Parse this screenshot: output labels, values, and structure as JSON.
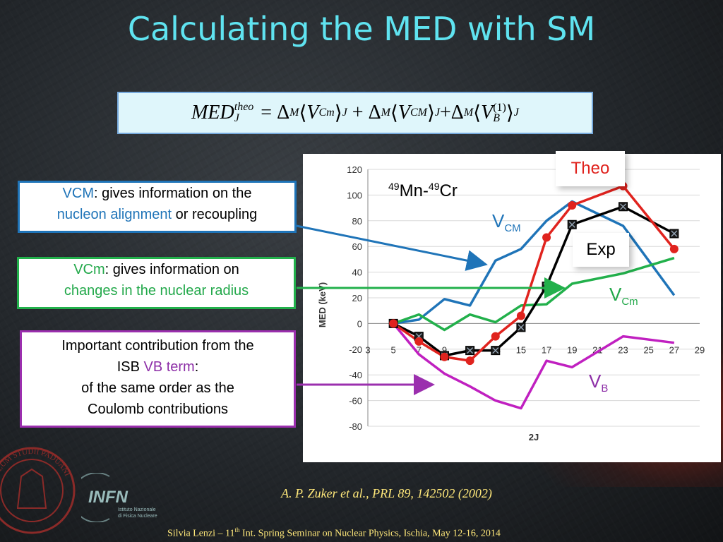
{
  "slide": {
    "title": "Calculating the MED with SM",
    "formula": {
      "lhs": "MED",
      "lhs_sup": "theo",
      "lhs_sub": "J",
      "terms": [
        "Δ",
        "M",
        "V",
        "Cm",
        "J",
        "Δ",
        "M",
        "V",
        "CM",
        "J",
        "Δ",
        "M",
        "V",
        "B",
        "(1)",
        "J"
      ]
    },
    "box_vcm": {
      "term": "VCM",
      "text1": ":  gives information on the",
      "hl": "nucleon alignment",
      "text2": " or recoupling"
    },
    "box_vcm_small": {
      "term": "VCm",
      "text1": ": gives information on",
      "hl": "changes in the nuclear radius"
    },
    "box_vb": {
      "line1": "Important contribution from the",
      "isb": "ISB ",
      "term": "VB term",
      "colon": ":",
      "line3": "of the same order as the",
      "line4": "Coulomb contributions"
    },
    "label_theo": "Theo",
    "label_exp": "Exp",
    "series_labels": {
      "vcm_main": "V",
      "vcm_sub": "CM",
      "vcmm_main": "V",
      "vcmm_sub": "Cm",
      "vb_main": "V",
      "vb_sub": "B"
    },
    "nucleus": {
      "a1": "49",
      "e1": "Mn-",
      "a2": "49",
      "e2": "Cr"
    },
    "reference": "A. P. Zuker et al., PRL 89, 142502 (2002)",
    "footer": {
      "pre": "Silvia Lenzi –  11",
      "sup": "th",
      "post": "  Int. Spring Seminar on Nuclear Physics, Ischia, May 12-16, 2014"
    },
    "logo": {
      "name": "INFN",
      "line1": "Istituto Nazionale",
      "line2": "di Fisica Nucleare"
    },
    "seal_text": "SIGILLUM STUDII PADUANI"
  },
  "colors": {
    "title": "#5fe3f0",
    "theo": "#e0231e",
    "exp": "#000000",
    "vcm": "#1f74b8",
    "vcmm": "#22b04b",
    "vb": "#c020c0"
  },
  "chart_data": {
    "type": "line",
    "xlabel": "2J",
    "ylabel": "MED (keV)",
    "xlim": [
      3,
      29
    ],
    "ylim": [
      -80,
      120
    ],
    "xticks": [
      3,
      5,
      7,
      9,
      11,
      13,
      15,
      17,
      19,
      21,
      23,
      25,
      27,
      29
    ],
    "yticks": [
      -80,
      -60,
      -40,
      -20,
      0,
      20,
      40,
      60,
      80,
      100,
      120
    ],
    "grid": "horizontal",
    "series": [
      {
        "name": "Theo",
        "color": "#e0231e",
        "marker": "circle",
        "x": [
          5,
          7,
          9,
          11,
          13,
          15,
          17,
          19,
          23,
          27
        ],
        "y": [
          0,
          -14,
          -26,
          -29,
          -10,
          6,
          67,
          92,
          107,
          58
        ]
      },
      {
        "name": "Exp",
        "color": "#000000",
        "marker": "square",
        "x": [
          5,
          7,
          9,
          11,
          13,
          15,
          17,
          19,
          23,
          27
        ],
        "y": [
          0,
          -10,
          -25,
          -21,
          -21,
          -3,
          29,
          77,
          91,
          70
        ]
      },
      {
        "name": "VCM",
        "color": "#1f74b8",
        "x": [
          5,
          7,
          9,
          11,
          13,
          15,
          17,
          19,
          23,
          27
        ],
        "y": [
          0,
          3,
          19,
          14,
          49,
          58,
          80,
          95,
          76,
          22
        ]
      },
      {
        "name": "VCm",
        "color": "#22b04b",
        "x": [
          5,
          7,
          9,
          11,
          13,
          15,
          17,
          19,
          23,
          27
        ],
        "y": [
          0,
          7,
          -5,
          7,
          1,
          14,
          15,
          31,
          39,
          51
        ]
      },
      {
        "name": "VB",
        "color": "#c020c0",
        "x": [
          5,
          7,
          9,
          11,
          13,
          15,
          17,
          19,
          23,
          27
        ],
        "y": [
          0,
          -24,
          -39,
          -49,
          -60,
          -66,
          -29,
          -34,
          -10,
          -15
        ]
      }
    ]
  }
}
